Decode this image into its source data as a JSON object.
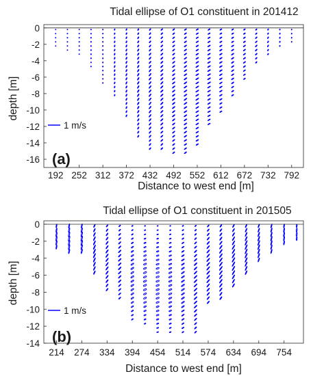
{
  "chart_data": [
    {
      "type": "scatter",
      "panel_label": "(a)",
      "title": "Tidal ellipse of O1 constituent in 201412",
      "xlabel": "Distance to west end [m]",
      "ylabel": "depth [m]",
      "xticks": [
        192,
        252,
        312,
        372,
        432,
        492,
        552,
        612,
        672,
        732,
        792
      ],
      "yticks": [
        0,
        -2,
        -4,
        -6,
        -8,
        -10,
        -12,
        -14,
        -16
      ],
      "xlim": [
        162,
        822
      ],
      "ylim": [
        -17,
        0.4
      ],
      "grid": false,
      "legend": {
        "position": "middle-left",
        "entries": [
          {
            "label": "1 m/s",
            "color": "#0000ff"
          }
        ]
      },
      "series_color": "#0000ff",
      "scale_m_per_mps": 22,
      "profiles": [
        {
          "x": 192,
          "bottom": -2.0,
          "ang": 92,
          "amp": [
            0.015,
            0.02
          ],
          "ecc": 0.04
        },
        {
          "x": 222,
          "bottom": -2.8,
          "ang": 90,
          "amp": [
            0.018,
            0.024
          ],
          "ecc": 0.04
        },
        {
          "x": 252,
          "bottom": -3.4,
          "ang": 92,
          "amp": [
            0.02,
            0.026
          ],
          "ecc": 0.04
        },
        {
          "x": 282,
          "bottom": -4.5,
          "ang": 90,
          "amp": [
            0.022,
            0.03
          ],
          "ecc": 0.05
        },
        {
          "x": 312,
          "bottom": -6.5,
          "ang": 88,
          "amp": [
            0.025,
            0.032
          ],
          "ecc": 0.05
        },
        {
          "x": 342,
          "bottom": -8.0,
          "ang": 75,
          "amp": [
            0.04,
            0.058
          ],
          "ecc": 0.03
        },
        {
          "x": 372,
          "bottom": -10.8,
          "ang": 68,
          "amp": [
            0.05,
            0.072
          ],
          "ecc": 0.03
        },
        {
          "x": 402,
          "bottom": -13.0,
          "ang": 60,
          "amp": [
            0.055,
            0.085
          ],
          "ecc": 0.03
        },
        {
          "x": 432,
          "bottom": -14.8,
          "ang": 52,
          "amp": [
            0.06,
            0.09
          ],
          "ecc": 0.03
        },
        {
          "x": 462,
          "bottom": -14.8,
          "ang": 46,
          "amp": [
            0.065,
            0.095
          ],
          "ecc": 0.03
        },
        {
          "x": 492,
          "bottom": -15.2,
          "ang": 40,
          "amp": [
            0.068,
            0.095
          ],
          "ecc": 0.03
        },
        {
          "x": 522,
          "bottom": -15.0,
          "ang": 36,
          "amp": [
            0.07,
            0.098
          ],
          "ecc": 0.03
        },
        {
          "x": 552,
          "bottom": -14.2,
          "ang": 33,
          "amp": [
            0.07,
            0.098
          ],
          "ecc": 0.03
        },
        {
          "x": 582,
          "bottom": -11.8,
          "ang": 32,
          "amp": [
            0.07,
            0.096
          ],
          "ecc": 0.03
        },
        {
          "x": 612,
          "bottom": -10.2,
          "ang": 33,
          "amp": [
            0.065,
            0.09
          ],
          "ecc": 0.03
        },
        {
          "x": 642,
          "bottom": -8.0,
          "ang": 35,
          "amp": [
            0.06,
            0.085
          ],
          "ecc": 0.03
        },
        {
          "x": 672,
          "bottom": -6.2,
          "ang": 38,
          "amp": [
            0.055,
            0.078
          ],
          "ecc": 0.03
        },
        {
          "x": 702,
          "bottom": -4.4,
          "ang": 45,
          "amp": [
            0.05,
            0.07
          ],
          "ecc": 0.03
        },
        {
          "x": 732,
          "bottom": -3.0,
          "ang": 60,
          "amp": [
            0.04,
            0.055
          ],
          "ecc": 0.04
        },
        {
          "x": 762,
          "bottom": -2.0,
          "ang": 75,
          "amp": [
            0.03,
            0.04
          ],
          "ecc": 0.04
        },
        {
          "x": 792,
          "bottom": -1.8,
          "ang": 85,
          "amp": [
            0.025,
            0.03
          ],
          "ecc": 0.04
        }
      ]
    },
    {
      "type": "scatter",
      "panel_label": "(b)",
      "title": "Tidal ellipse of O1 constituent in 201505",
      "xlabel": "Distance to west end [m]",
      "ylabel": "depth [m]",
      "xticks": [
        214,
        274,
        334,
        394,
        454,
        514,
        574,
        634,
        694,
        754
      ],
      "yticks": [
        0,
        -2,
        -4,
        -6,
        -8,
        -10,
        -12,
        -14
      ],
      "xlim": [
        184,
        800
      ],
      "ylim": [
        -14,
        0.4
      ],
      "grid": false,
      "legend": {
        "position": "middle-left",
        "entries": [
          {
            "label": "1 m/s",
            "color": "#0000ff"
          }
        ]
      },
      "series_color": "#0000ff",
      "scale_m_per_mps": 22,
      "profiles": [
        {
          "x": 214,
          "bottom": -2.6,
          "ang": 80,
          "amp": [
            0.1,
            0.13
          ],
          "ecc": 0.18
        },
        {
          "x": 244,
          "bottom": -3.0,
          "ang": 78,
          "amp": [
            0.11,
            0.14
          ],
          "ecc": 0.2
        },
        {
          "x": 274,
          "bottom": -3.4,
          "ang": 76,
          "amp": [
            0.11,
            0.14
          ],
          "ecc": 0.2
        },
        {
          "x": 304,
          "bottom": -5.8,
          "ang": 65,
          "amp": [
            0.09,
            0.13
          ],
          "ecc": 0.15
        },
        {
          "x": 334,
          "bottom": -7.8,
          "ang": 55,
          "amp": [
            0.07,
            0.11
          ],
          "ecc": 0.12
        },
        {
          "x": 364,
          "bottom": -8.8,
          "ang": 45,
          "amp": [
            0.06,
            0.1
          ],
          "ecc": 0.2
        },
        {
          "x": 394,
          "bottom": -11.0,
          "ang": 35,
          "amp": [
            0.04,
            0.09
          ],
          "ecc": 0.35
        },
        {
          "x": 424,
          "bottom": -11.8,
          "ang": 25,
          "amp": [
            0.03,
            0.09
          ],
          "ecc": 0.4
        },
        {
          "x": 454,
          "bottom": -12.6,
          "ang": 20,
          "amp": [
            0.03,
            0.09
          ],
          "ecc": 0.4
        },
        {
          "x": 484,
          "bottom": -12.7,
          "ang": 25,
          "amp": [
            0.03,
            0.09
          ],
          "ecc": 0.35
        },
        {
          "x": 514,
          "bottom": -12.8,
          "ang": 35,
          "amp": [
            0.04,
            0.1
          ],
          "ecc": 0.25
        },
        {
          "x": 544,
          "bottom": -12.9,
          "ang": 45,
          "amp": [
            0.05,
            0.11
          ],
          "ecc": 0.15
        },
        {
          "x": 574,
          "bottom": -9.0,
          "ang": 50,
          "amp": [
            0.07,
            0.12
          ],
          "ecc": 0.1
        },
        {
          "x": 604,
          "bottom": -8.6,
          "ang": 55,
          "amp": [
            0.08,
            0.13
          ],
          "ecc": 0.08
        },
        {
          "x": 634,
          "bottom": -7.2,
          "ang": 60,
          "amp": [
            0.09,
            0.14
          ],
          "ecc": 0.08
        },
        {
          "x": 664,
          "bottom": -5.6,
          "ang": 66,
          "amp": [
            0.1,
            0.14
          ],
          "ecc": 0.1
        },
        {
          "x": 694,
          "bottom": -4.2,
          "ang": 70,
          "amp": [
            0.1,
            0.14
          ],
          "ecc": 0.12
        },
        {
          "x": 724,
          "bottom": -3.4,
          "ang": 75,
          "amp": [
            0.11,
            0.13
          ],
          "ecc": 0.15
        },
        {
          "x": 754,
          "bottom": -2.4,
          "ang": 80,
          "amp": [
            0.1,
            0.12
          ],
          "ecc": 0.2
        },
        {
          "x": 784,
          "bottom": -1.6,
          "ang": 85,
          "amp": [
            0.09,
            0.11
          ],
          "ecc": 0.25
        }
      ]
    }
  ]
}
